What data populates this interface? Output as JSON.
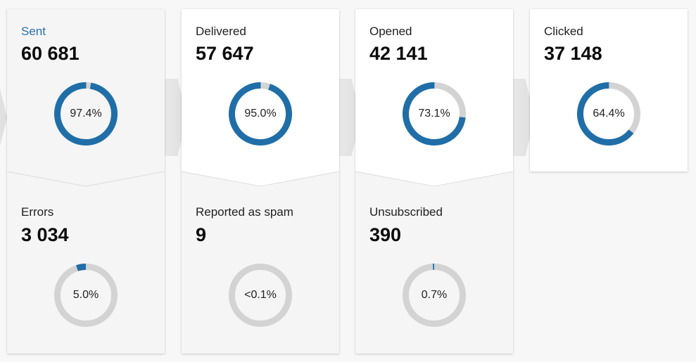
{
  "colors": {
    "accent": "#2a6fa8",
    "arc_fill": "#1f6ea8",
    "arc_track": "#d3d3d3",
    "card_white": "#ffffff",
    "card_grey": "#f5f5f5",
    "background": "#f7f7f7"
  },
  "funnel": [
    {
      "id": "sent",
      "label": "Sent",
      "value": "60 681",
      "percent_label": "97.4%",
      "percent": 97.4,
      "selected": true,
      "secondary": {
        "label": "Errors",
        "value": "3 034",
        "percent_label": "5.0%",
        "percent": 5.0
      }
    },
    {
      "id": "delivered",
      "label": "Delivered",
      "value": "57 647",
      "percent_label": "95.0%",
      "percent": 95.0,
      "selected": false,
      "secondary": {
        "label": "Reported as spam",
        "value": "9",
        "percent_label": "<0.1%",
        "percent": 0.0
      }
    },
    {
      "id": "opened",
      "label": "Opened",
      "value": "42 141",
      "percent_label": "73.1%",
      "percent": 73.1,
      "selected": false,
      "secondary": {
        "label": "Unsubscribed",
        "value": "390",
        "percent_label": "0.7%",
        "percent": 0.7
      }
    },
    {
      "id": "clicked",
      "label": "Clicked",
      "value": "37 148",
      "percent_label": "64.4%",
      "percent": 64.4,
      "selected": false
    }
  ]
}
